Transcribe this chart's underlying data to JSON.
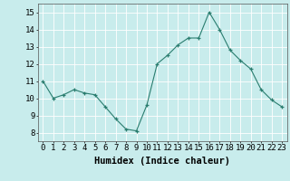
{
  "x": [
    0,
    1,
    2,
    3,
    4,
    5,
    6,
    7,
    8,
    9,
    10,
    11,
    12,
    13,
    14,
    15,
    16,
    17,
    18,
    19,
    20,
    21,
    22,
    23
  ],
  "y": [
    11,
    10,
    10.2,
    10.5,
    10.3,
    10.2,
    9.5,
    8.8,
    8.2,
    8.1,
    9.6,
    12.0,
    12.5,
    13.1,
    13.5,
    13.5,
    15.0,
    14.0,
    12.8,
    12.2,
    11.7,
    10.5,
    9.9,
    9.5
  ],
  "line_color": "#2a7d6f",
  "marker": "+",
  "marker_color": "#2a7d6f",
  "bg_color": "#c8ecec",
  "grid_color": "#ffffff",
  "xlabel": "Humidex (Indice chaleur)",
  "ylim": [
    7.5,
    15.5
  ],
  "xlim": [
    -0.5,
    23.5
  ],
  "yticks": [
    8,
    9,
    10,
    11,
    12,
    13,
    14,
    15
  ],
  "xticks": [
    0,
    1,
    2,
    3,
    4,
    5,
    6,
    7,
    8,
    9,
    10,
    11,
    12,
    13,
    14,
    15,
    16,
    17,
    18,
    19,
    20,
    21,
    22,
    23
  ],
  "xlabel_fontsize": 7.5,
  "tick_fontsize": 6.5,
  "figsize": [
    3.2,
    2.0
  ],
  "dpi": 100
}
